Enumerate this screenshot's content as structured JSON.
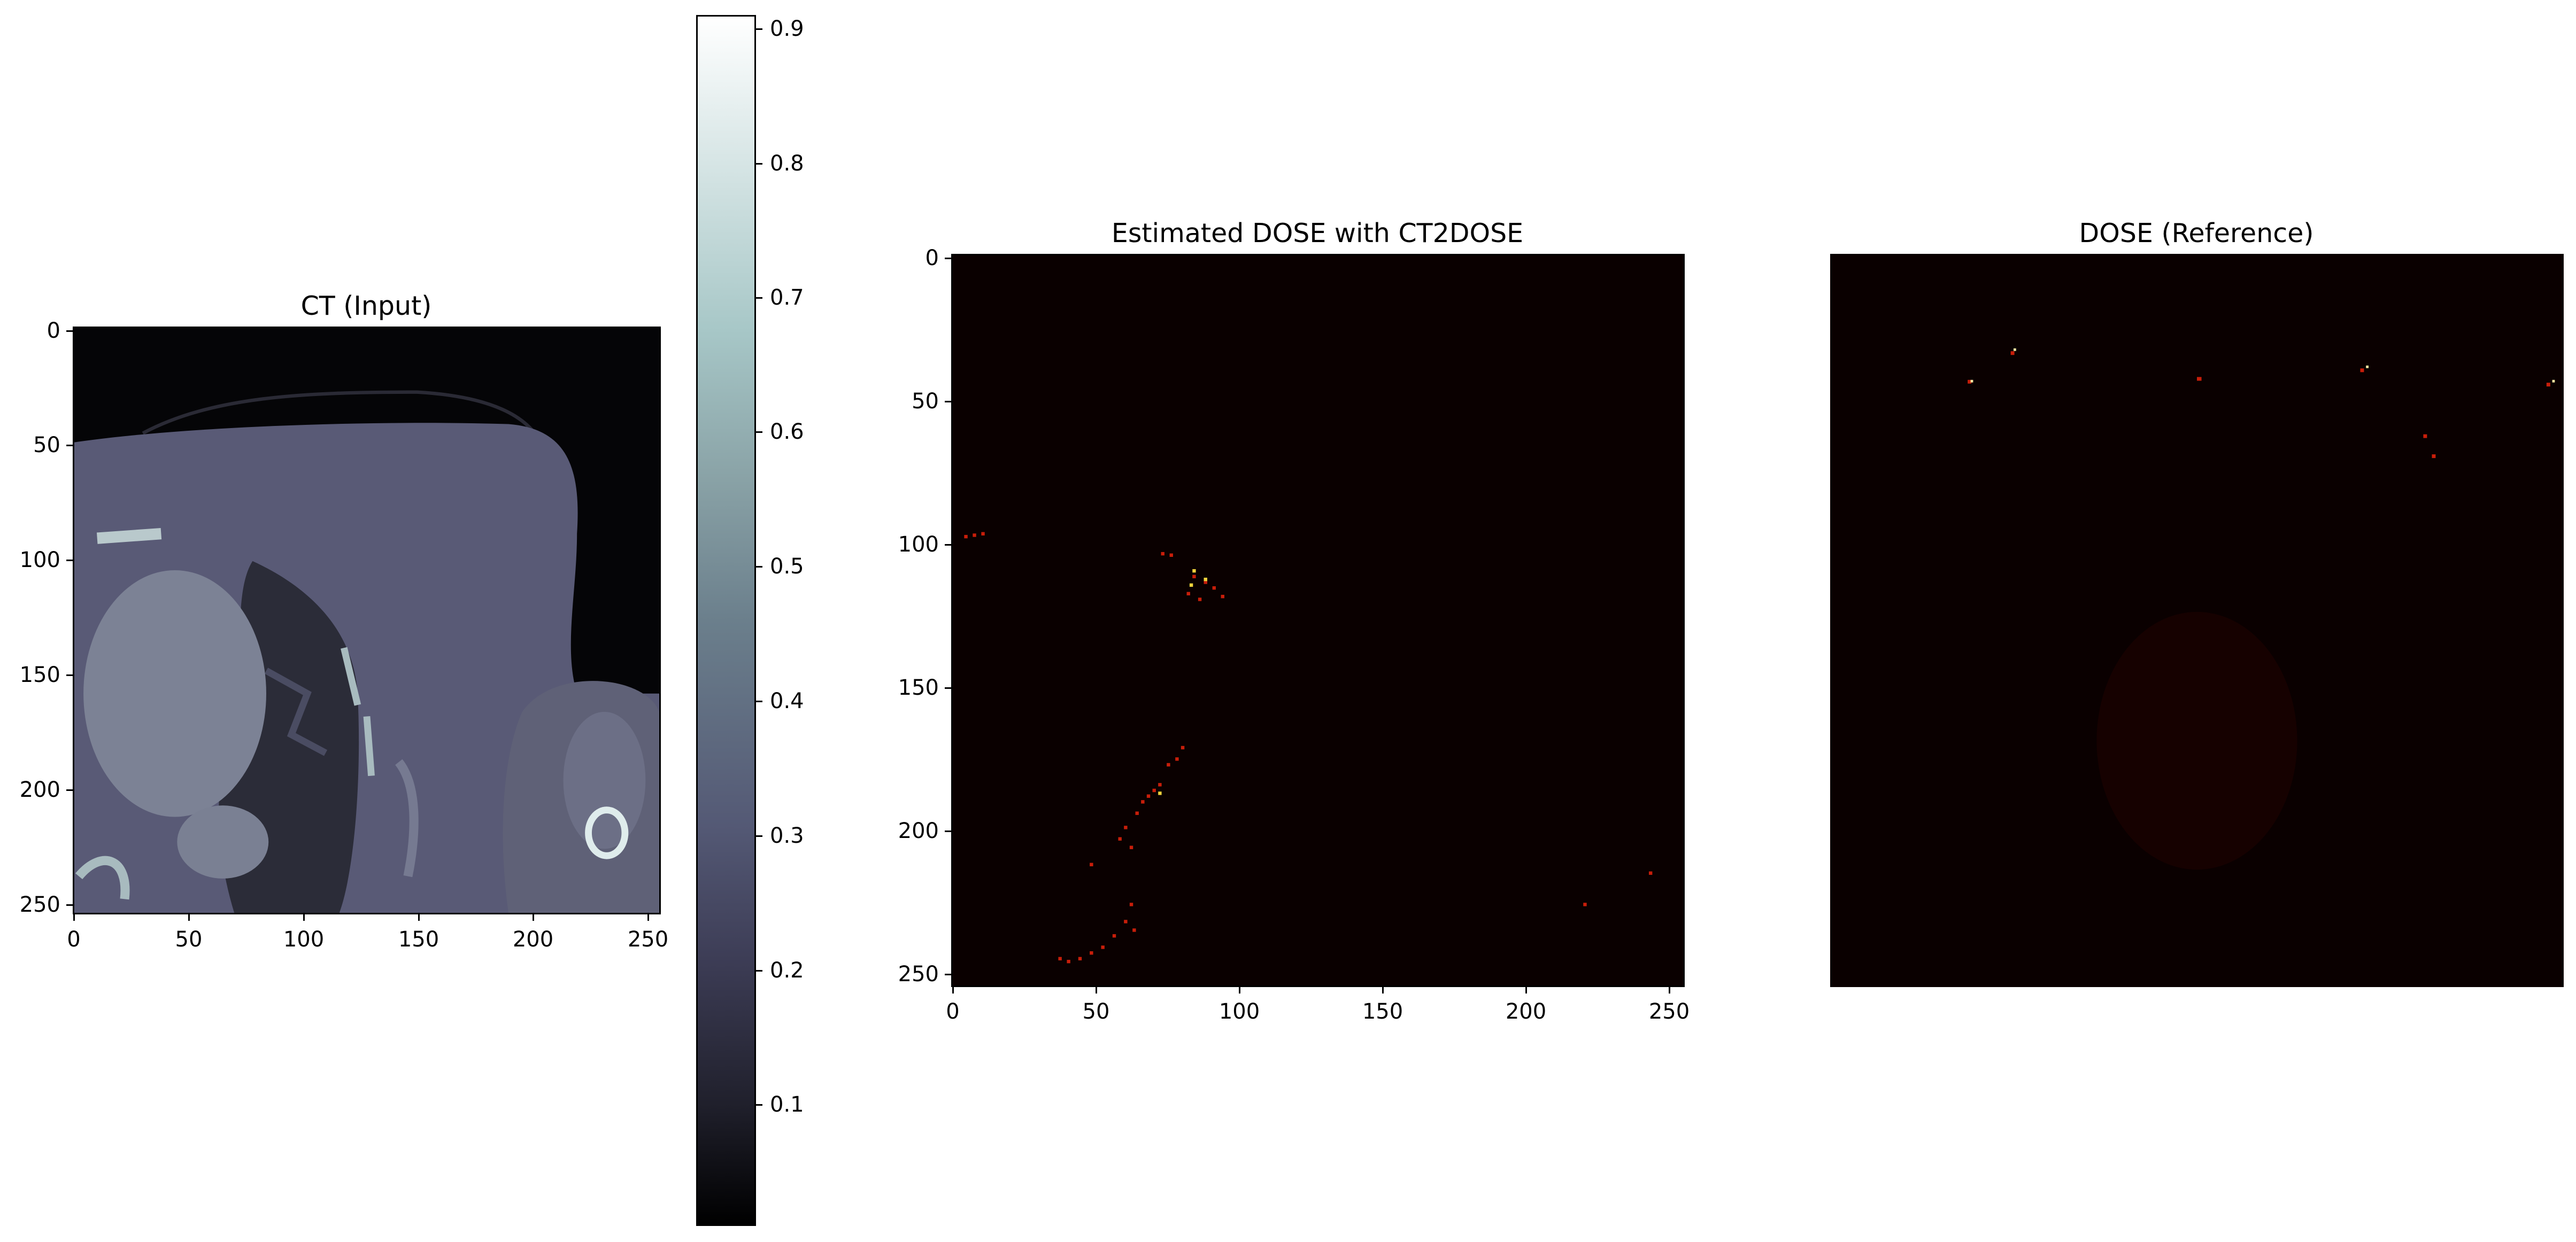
{
  "panels": [
    {
      "id": "ct",
      "title": "CT (Input)",
      "x_ticks": [
        "0",
        "50",
        "100",
        "150",
        "200",
        "250"
      ],
      "y_ticks": [
        "0",
        "50",
        "100",
        "150",
        "200",
        "250"
      ],
      "colormap": "bone"
    },
    {
      "id": "estimated",
      "title": "Estimated DOSE with CT2DOSE",
      "x_ticks": [
        "0",
        "50",
        "100",
        "150",
        "200",
        "250"
      ],
      "y_ticks": [
        "0",
        "50",
        "100",
        "150",
        "200",
        "250"
      ],
      "colormap": "hot"
    },
    {
      "id": "reference",
      "title": "DOSE (Reference)",
      "colormap": "hot"
    }
  ],
  "colorbar": {
    "ticks": [
      "0.1",
      "0.2",
      "0.3",
      "0.4",
      "0.5",
      "0.6",
      "0.7",
      "0.8",
      "0.9"
    ]
  }
}
